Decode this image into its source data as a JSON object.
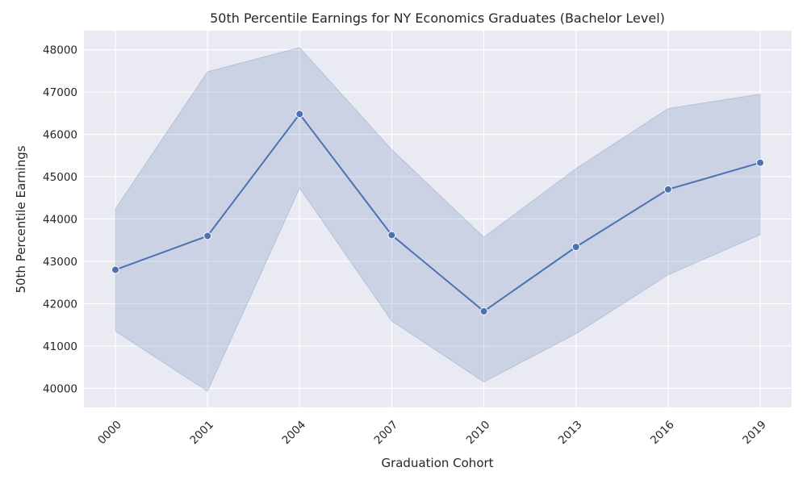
{
  "chart_data": {
    "type": "line",
    "title": "50th Percentile Earnings for NY Economics Graduates (Bachelor Level)",
    "xlabel": "Graduation Cohort",
    "ylabel": "50th Percentile Earnings",
    "categories": [
      "0000",
      "2001",
      "2004",
      "2007",
      "2010",
      "2013",
      "2016",
      "2019"
    ],
    "series": [
      {
        "values": [
          42800,
          43600,
          46480,
          43620,
          41820,
          43340,
          44700,
          45330
        ],
        "ci_lower": [
          41350,
          39930,
          44730,
          41590,
          40150,
          41290,
          42680,
          43630
        ],
        "ci_upper": [
          44240,
          47480,
          48050,
          45640,
          43570,
          45190,
          46610,
          46950
        ]
      }
    ],
    "yticks": [
      40000,
      41000,
      42000,
      43000,
      44000,
      45000,
      46000,
      47000,
      48000
    ],
    "ylim": [
      39550,
      48450
    ],
    "grid": true,
    "colors": {
      "line": "#4c72b0",
      "band": "#4c72b0",
      "background": "#eaeaf2",
      "grid": "#ffffff"
    }
  }
}
